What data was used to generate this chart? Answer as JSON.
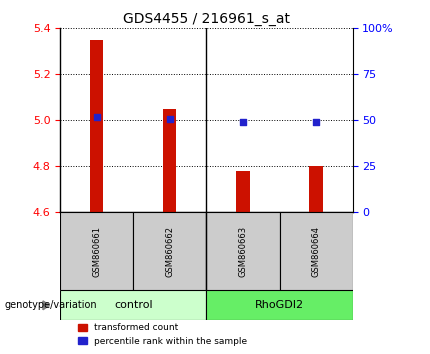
{
  "title": "GDS4455 / 216961_s_at",
  "samples": [
    "GSM860661",
    "GSM860662",
    "GSM860663",
    "GSM860664"
  ],
  "groups": [
    "control",
    "control",
    "RhoGDI2",
    "RhoGDI2"
  ],
  "group_colors": {
    "control": "#ccffcc",
    "RhoGDI2": "#66ee66"
  },
  "red_values": [
    5.35,
    5.05,
    4.78,
    4.8
  ],
  "blue_values": [
    52,
    51,
    49,
    49
  ],
  "y_min": 4.6,
  "y_max": 5.4,
  "y_ticks": [
    4.6,
    4.8,
    5.0,
    5.2,
    5.4
  ],
  "right_y_ticks": [
    0,
    25,
    50,
    75,
    100
  ],
  "right_y_labels": [
    "0",
    "25",
    "50",
    "75",
    "100%"
  ],
  "bar_color": "#cc1100",
  "marker_color": "#2222cc",
  "bar_width": 0.18,
  "baseline": 4.6,
  "legend_red": "transformed count",
  "legend_blue": "percentile rank within the sample",
  "left_label": "genotype/variation",
  "sample_box_color": "#cccccc",
  "group_divider_at": 1.5,
  "title_fontsize": 10,
  "tick_fontsize": 8,
  "sample_fontsize": 6,
  "group_fontsize": 8,
  "legend_fontsize": 6.5
}
